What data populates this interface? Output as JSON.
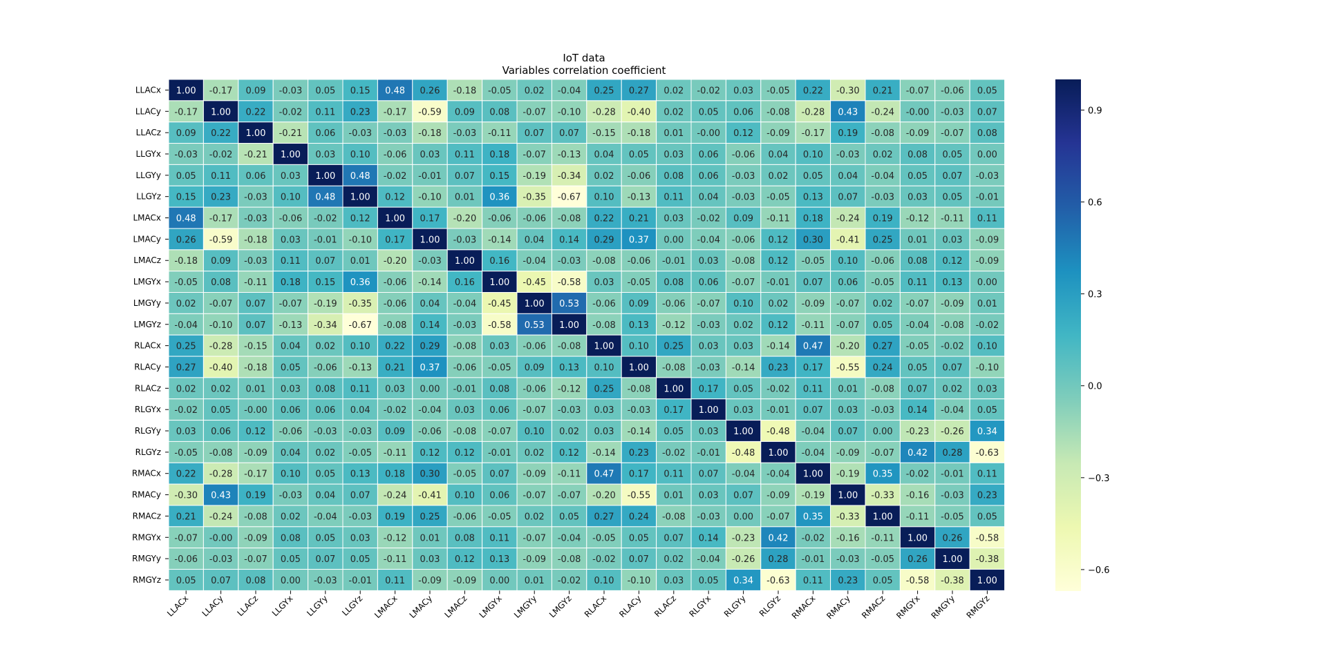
{
  "chart_data": {
    "type": "heatmap",
    "title": "IoT data",
    "subtitle": "Variables correlation coefficient",
    "variables": [
      "LLACx",
      "LLACy",
      "LLACz",
      "LLGYx",
      "LLGYy",
      "LLGYz",
      "LMACx",
      "LMACy",
      "LMACz",
      "LMGYx",
      "LMGYy",
      "LMGYz",
      "RLACx",
      "RLACy",
      "RLACz",
      "RLGYx",
      "RLGYy",
      "RLGYz",
      "RMACx",
      "RMACy",
      "RMACz",
      "RMGYx",
      "RMGYy",
      "RMGYz"
    ],
    "matrix": [
      [
        1.0,
        -0.17,
        0.09,
        -0.03,
        0.05,
        0.15,
        0.48,
        0.26,
        -0.18,
        -0.05,
        0.02,
        -0.04,
        0.25,
        0.27,
        0.02,
        -0.02,
        0.03,
        -0.05,
        0.22,
        -0.3,
        0.21,
        -0.07,
        -0.06,
        0.05
      ],
      [
        -0.17,
        1.0,
        0.22,
        -0.02,
        0.11,
        0.23,
        -0.17,
        -0.59,
        0.09,
        0.08,
        -0.07,
        -0.1,
        -0.28,
        -0.4,
        0.02,
        0.05,
        0.06,
        -0.08,
        -0.28,
        0.43,
        -0.24,
        -0.0,
        -0.03,
        0.07
      ],
      [
        0.09,
        0.22,
        1.0,
        -0.21,
        0.06,
        -0.03,
        -0.03,
        -0.18,
        -0.03,
        -0.11,
        0.07,
        0.07,
        -0.15,
        -0.18,
        0.01,
        -0.0,
        0.12,
        -0.09,
        -0.17,
        0.19,
        -0.08,
        -0.09,
        -0.07,
        0.08
      ],
      [
        -0.03,
        -0.02,
        -0.21,
        1.0,
        0.03,
        0.1,
        -0.06,
        0.03,
        0.11,
        0.18,
        -0.07,
        -0.13,
        0.04,
        0.05,
        0.03,
        0.06,
        -0.06,
        0.04,
        0.1,
        -0.03,
        0.02,
        0.08,
        0.05,
        0.0
      ],
      [
        0.05,
        0.11,
        0.06,
        0.03,
        1.0,
        0.48,
        -0.02,
        -0.01,
        0.07,
        0.15,
        -0.19,
        -0.34,
        0.02,
        -0.06,
        0.08,
        0.06,
        -0.03,
        0.02,
        0.05,
        0.04,
        -0.04,
        0.05,
        0.07,
        -0.03
      ],
      [
        0.15,
        0.23,
        -0.03,
        0.1,
        0.48,
        1.0,
        0.12,
        -0.1,
        0.01,
        0.36,
        -0.35,
        -0.67,
        0.1,
        -0.13,
        0.11,
        0.04,
        -0.03,
        -0.05,
        0.13,
        0.07,
        -0.03,
        0.03,
        0.05,
        -0.01
      ],
      [
        0.48,
        -0.17,
        -0.03,
        -0.06,
        -0.02,
        0.12,
        1.0,
        0.17,
        -0.2,
        -0.06,
        -0.06,
        -0.08,
        0.22,
        0.21,
        0.03,
        -0.02,
        0.09,
        -0.11,
        0.18,
        -0.24,
        0.19,
        -0.12,
        -0.11,
        0.11
      ],
      [
        0.26,
        -0.59,
        -0.18,
        0.03,
        -0.01,
        -0.1,
        0.17,
        1.0,
        -0.03,
        -0.14,
        0.04,
        0.14,
        0.29,
        0.37,
        0.0,
        -0.04,
        -0.06,
        0.12,
        0.3,
        -0.41,
        0.25,
        0.01,
        0.03,
        -0.09
      ],
      [
        -0.18,
        0.09,
        -0.03,
        0.11,
        0.07,
        0.01,
        -0.2,
        -0.03,
        1.0,
        0.16,
        -0.04,
        -0.03,
        -0.08,
        -0.06,
        -0.01,
        0.03,
        -0.08,
        0.12,
        -0.05,
        0.1,
        -0.06,
        0.08,
        0.12,
        -0.09
      ],
      [
        -0.05,
        0.08,
        -0.11,
        0.18,
        0.15,
        0.36,
        -0.06,
        -0.14,
        0.16,
        1.0,
        -0.45,
        -0.58,
        0.03,
        -0.05,
        0.08,
        0.06,
        -0.07,
        -0.01,
        0.07,
        0.06,
        -0.05,
        0.11,
        0.13,
        0.0
      ],
      [
        0.02,
        -0.07,
        0.07,
        -0.07,
        -0.19,
        -0.35,
        -0.06,
        0.04,
        -0.04,
        -0.45,
        1.0,
        0.53,
        -0.06,
        0.09,
        -0.06,
        -0.07,
        0.1,
        0.02,
        -0.09,
        -0.07,
        0.02,
        -0.07,
        -0.09,
        0.01
      ],
      [
        -0.04,
        -0.1,
        0.07,
        -0.13,
        -0.34,
        -0.67,
        -0.08,
        0.14,
        -0.03,
        -0.58,
        0.53,
        1.0,
        -0.08,
        0.13,
        -0.12,
        -0.03,
        0.02,
        0.12,
        -0.11,
        -0.07,
        0.05,
        -0.04,
        -0.08,
        -0.02
      ],
      [
        0.25,
        -0.28,
        -0.15,
        0.04,
        0.02,
        0.1,
        0.22,
        0.29,
        -0.08,
        0.03,
        -0.06,
        -0.08,
        1.0,
        0.1,
        0.25,
        0.03,
        0.03,
        -0.14,
        0.47,
        -0.2,
        0.27,
        -0.05,
        -0.02,
        0.1
      ],
      [
        0.27,
        -0.4,
        -0.18,
        0.05,
        -0.06,
        -0.13,
        0.21,
        0.37,
        -0.06,
        -0.05,
        0.09,
        0.13,
        0.1,
        1.0,
        -0.08,
        -0.03,
        -0.14,
        0.23,
        0.17,
        -0.55,
        0.24,
        0.05,
        0.07,
        -0.1
      ],
      [
        0.02,
        0.02,
        0.01,
        0.03,
        0.08,
        0.11,
        0.03,
        0.0,
        -0.01,
        0.08,
        -0.06,
        -0.12,
        0.25,
        -0.08,
        1.0,
        0.17,
        0.05,
        -0.02,
        0.11,
        0.01,
        -0.08,
        0.07,
        0.02,
        0.03
      ],
      [
        -0.02,
        0.05,
        -0.0,
        0.06,
        0.06,
        0.04,
        -0.02,
        -0.04,
        0.03,
        0.06,
        -0.07,
        -0.03,
        0.03,
        -0.03,
        0.17,
        1.0,
        0.03,
        -0.01,
        0.07,
        0.03,
        -0.03,
        0.14,
        -0.04,
        0.05
      ],
      [
        0.03,
        0.06,
        0.12,
        -0.06,
        -0.03,
        -0.03,
        0.09,
        -0.06,
        -0.08,
        -0.07,
        0.1,
        0.02,
        0.03,
        -0.14,
        0.05,
        0.03,
        1.0,
        -0.48,
        -0.04,
        0.07,
        0.0,
        -0.23,
        -0.26,
        0.34
      ],
      [
        -0.05,
        -0.08,
        -0.09,
        0.04,
        0.02,
        -0.05,
        -0.11,
        0.12,
        0.12,
        -0.01,
        0.02,
        0.12,
        -0.14,
        0.23,
        -0.02,
        -0.01,
        -0.48,
        1.0,
        -0.04,
        -0.09,
        -0.07,
        0.42,
        0.28,
        -0.63
      ],
      [
        0.22,
        -0.28,
        -0.17,
        0.1,
        0.05,
        0.13,
        0.18,
        0.3,
        -0.05,
        0.07,
        -0.09,
        -0.11,
        0.47,
        0.17,
        0.11,
        0.07,
        -0.04,
        -0.04,
        1.0,
        -0.19,
        0.35,
        -0.02,
        -0.01,
        0.11
      ],
      [
        -0.3,
        0.43,
        0.19,
        -0.03,
        0.04,
        0.07,
        -0.24,
        -0.41,
        0.1,
        0.06,
        -0.07,
        -0.07,
        -0.2,
        -0.55,
        0.01,
        0.03,
        0.07,
        -0.09,
        -0.19,
        1.0,
        -0.33,
        -0.16,
        -0.03,
        0.23
      ],
      [
        0.21,
        -0.24,
        -0.08,
        0.02,
        -0.04,
        -0.03,
        0.19,
        0.25,
        -0.06,
        -0.05,
        0.02,
        0.05,
        0.27,
        0.24,
        -0.08,
        -0.03,
        0.0,
        -0.07,
        0.35,
        -0.33,
        1.0,
        -0.11,
        -0.05,
        0.05
      ],
      [
        -0.07,
        -0.0,
        -0.09,
        0.08,
        0.05,
        0.03,
        -0.12,
        0.01,
        0.08,
        0.11,
        -0.07,
        -0.04,
        -0.05,
        0.05,
        0.07,
        0.14,
        -0.23,
        0.42,
        -0.02,
        -0.16,
        -0.11,
        1.0,
        0.26,
        -0.58
      ],
      [
        -0.06,
        -0.03,
        -0.07,
        0.05,
        0.07,
        0.05,
        -0.11,
        0.03,
        0.12,
        0.13,
        -0.09,
        -0.08,
        -0.02,
        0.07,
        0.02,
        -0.04,
        -0.26,
        0.28,
        -0.01,
        -0.03,
        -0.05,
        0.26,
        1.0,
        -0.38
      ],
      [
        0.05,
        0.07,
        0.08,
        0.0,
        -0.03,
        -0.01,
        0.11,
        -0.09,
        -0.09,
        0.0,
        0.01,
        -0.02,
        0.1,
        -0.1,
        0.03,
        0.05,
        0.34,
        -0.63,
        0.11,
        0.23,
        0.05,
        -0.58,
        -0.38,
        1.0
      ]
    ],
    "colorbar": {
      "colormap": "YlGnBu",
      "range": [
        -0.67,
        1.0
      ],
      "ticks": [
        0.9,
        0.6,
        0.3,
        0.0,
        -0.3,
        -0.6
      ],
      "tick_labels": [
        "0.9",
        "0.6",
        "0.3",
        "0.0",
        "−0.3",
        "−0.6"
      ]
    },
    "annotations": true,
    "value_format": "2 decimals"
  }
}
